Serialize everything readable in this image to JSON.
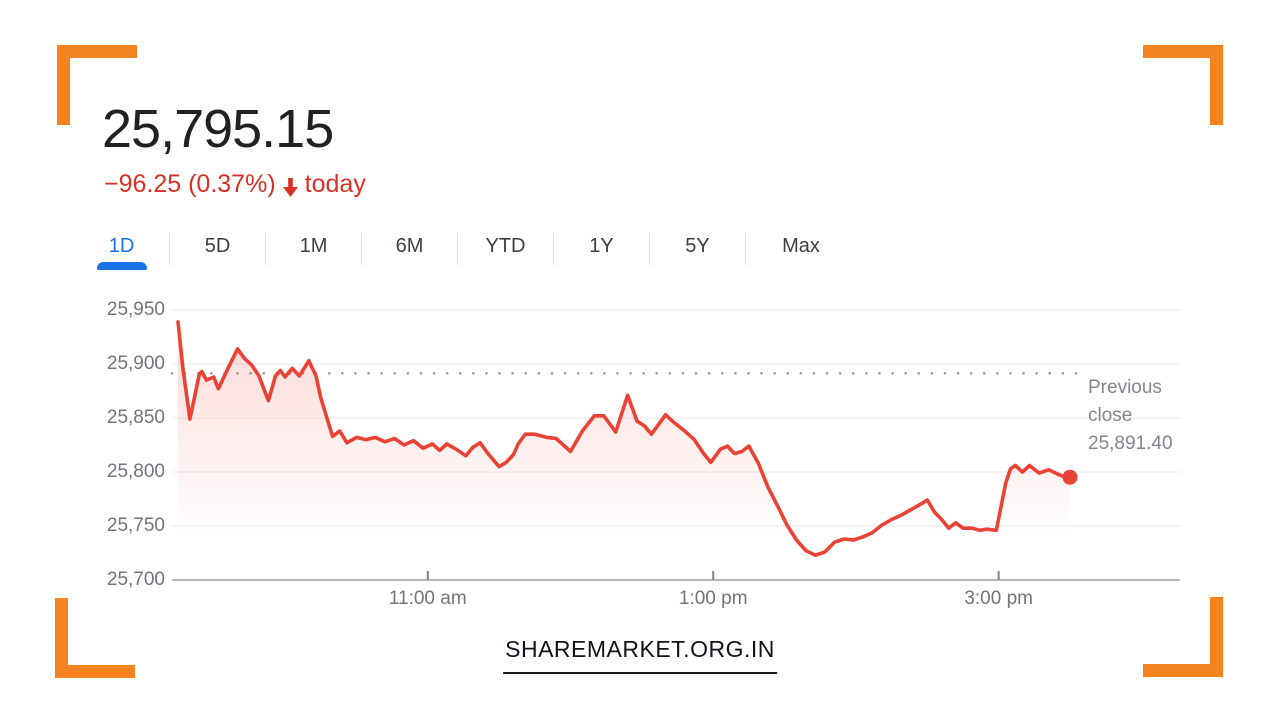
{
  "colors": {
    "accent_orange": "#f5831f",
    "line_red": "#ea4335",
    "change_red": "#d93025",
    "active_tab_blue": "#1a73e8",
    "price_text": "#202124",
    "axis_text_gray": "#70757a",
    "annotation_gray": "#80868b",
    "gridline_gray": "#e9eaec",
    "axis_line_gray": "#9aa0a6"
  },
  "header": {
    "price": "25,795.15",
    "change": "−96.25 (0.37%)",
    "direction_icon": "down-arrow-icon",
    "period": "today"
  },
  "tabs": {
    "items": [
      {
        "label": "1D",
        "active": true
      },
      {
        "label": "5D",
        "active": false
      },
      {
        "label": "1M",
        "active": false
      },
      {
        "label": "6M",
        "active": false
      },
      {
        "label": "YTD",
        "active": false
      },
      {
        "label": "1Y",
        "active": false
      },
      {
        "label": "5Y",
        "active": false
      },
      {
        "label": "Max",
        "active": false
      }
    ]
  },
  "chart_data": {
    "type": "line",
    "title": "",
    "xlabel": "",
    "ylabel": "",
    "grid": true,
    "legend": false,
    "x_unit": "minutes since 9:15 am session open",
    "session": {
      "start": "9:15 am",
      "end": "3:30 pm"
    },
    "ylim": [
      25700,
      25950
    ],
    "y_ticks": [
      {
        "label": "25,950",
        "value": 25950
      },
      {
        "label": "25,900",
        "value": 25900
      },
      {
        "label": "25,850",
        "value": 25850
      },
      {
        "label": "25,800",
        "value": 25800
      },
      {
        "label": "25,750",
        "value": 25750
      },
      {
        "label": "25,700",
        "value": 25700
      }
    ],
    "x_ticks": [
      {
        "label": "11:00 am",
        "t": 105
      },
      {
        "label": "1:00 pm",
        "t": 225
      },
      {
        "label": "3:00 pm",
        "t": 345
      }
    ],
    "previous_close": {
      "label": "Previous close",
      "value_label": "25,891.40",
      "value": 25891.4
    },
    "series": [
      {
        "name": "index-price",
        "color": "#ea4335",
        "points": [
          [
            0,
            25939
          ],
          [
            2,
            25897
          ],
          [
            5,
            25849
          ],
          [
            9,
            25891
          ],
          [
            10,
            25893
          ],
          [
            12,
            25885
          ],
          [
            15,
            25888
          ],
          [
            17,
            25877
          ],
          [
            21,
            25896
          ],
          [
            25,
            25914
          ],
          [
            28,
            25905
          ],
          [
            31,
            25899
          ],
          [
            34,
            25889
          ],
          [
            38,
            25866
          ],
          [
            41,
            25889
          ],
          [
            43,
            25894
          ],
          [
            45,
            25888
          ],
          [
            48,
            25896
          ],
          [
            51,
            25889
          ],
          [
            55,
            25903
          ],
          [
            58,
            25889
          ],
          [
            60,
            25869
          ],
          [
            63,
            25847
          ],
          [
            65,
            25833
          ],
          [
            68,
            25838
          ],
          [
            71,
            25827
          ],
          [
            75,
            25832
          ],
          [
            79,
            25830
          ],
          [
            83,
            25832
          ],
          [
            87,
            25828
          ],
          [
            91,
            25831
          ],
          [
            95,
            25825
          ],
          [
            99,
            25829
          ],
          [
            103,
            25822
          ],
          [
            107,
            25826
          ],
          [
            110,
            25820
          ],
          [
            113,
            25826
          ],
          [
            117,
            25821
          ],
          [
            121,
            25815
          ],
          [
            124,
            25823
          ],
          [
            127,
            25827
          ],
          [
            130,
            25818
          ],
          [
            133,
            25810
          ],
          [
            135,
            25805
          ],
          [
            138,
            25809
          ],
          [
            141,
            25816
          ],
          [
            143,
            25826
          ],
          [
            146,
            25835
          ],
          [
            150,
            25835
          ],
          [
            155,
            25832
          ],
          [
            159,
            25831
          ],
          [
            165,
            25819
          ],
          [
            170,
            25838
          ],
          [
            175,
            25852
          ],
          [
            179,
            25852
          ],
          [
            184,
            25837
          ],
          [
            189,
            25871
          ],
          [
            193,
            25847
          ],
          [
            196,
            25843
          ],
          [
            199,
            25835
          ],
          [
            205,
            25853
          ],
          [
            209,
            25845
          ],
          [
            213,
            25838
          ],
          [
            217,
            25830
          ],
          [
            221,
            25817
          ],
          [
            224,
            25809
          ],
          [
            228,
            25821
          ],
          [
            231,
            25824
          ],
          [
            234,
            25817
          ],
          [
            237,
            25819
          ],
          [
            240,
            25824
          ],
          [
            244,
            25808
          ],
          [
            248,
            25786
          ],
          [
            252,
            25769
          ],
          [
            256,
            25751
          ],
          [
            260,
            25737
          ],
          [
            264,
            25727
          ],
          [
            268,
            25723
          ],
          [
            272,
            25726
          ],
          [
            276,
            25735
          ],
          [
            280,
            25738
          ],
          [
            284,
            25737
          ],
          [
            288,
            25740
          ],
          [
            292,
            25744
          ],
          [
            296,
            25751
          ],
          [
            300,
            25756
          ],
          [
            304,
            25760
          ],
          [
            308,
            25765
          ],
          [
            312,
            25770
          ],
          [
            315,
            25774
          ],
          [
            318,
            25763
          ],
          [
            321,
            25756
          ],
          [
            324,
            25748
          ],
          [
            327,
            25753
          ],
          [
            330,
            25748
          ],
          [
            334,
            25748
          ],
          [
            337,
            25746
          ],
          [
            340,
            25747
          ],
          [
            344,
            25746
          ],
          [
            348,
            25790
          ],
          [
            350,
            25803
          ],
          [
            352,
            25806
          ],
          [
            355,
            25800
          ],
          [
            358,
            25806
          ],
          [
            362,
            25799
          ],
          [
            366,
            25802
          ],
          [
            370,
            25798
          ],
          [
            372,
            25796
          ],
          [
            375,
            25795.15
          ]
        ]
      }
    ],
    "end_point": {
      "t": 375,
      "price": 25795.15
    }
  },
  "footer": {
    "site": "SHAREMARKET.ORG.IN"
  }
}
